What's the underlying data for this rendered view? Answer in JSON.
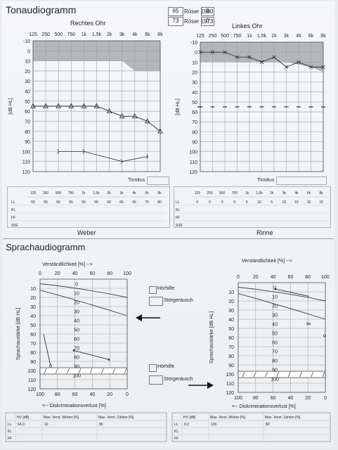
{
  "header": {
    "title": "Tonaudiogramm",
    "roeser1980_val": "65",
    "roeser1980_label": "Röser 1980",
    "roeser1980_box": "0",
    "roeser1973_val": "73",
    "roeser1973_label": "Röser 1973",
    "roeser1973_box": "0"
  },
  "tone": {
    "y_label": "[dB HL]",
    "y_ticks": [
      "-10",
      "0",
      "10",
      "20",
      "30",
      "40",
      "50",
      "60",
      "70",
      "80",
      "90",
      "100",
      "110",
      "120"
    ],
    "x_ticks": [
      "125",
      "250",
      "500",
      "750",
      "1k",
      "1,5k",
      "2k",
      "3k",
      "4k",
      "6k",
      "8k"
    ],
    "right": {
      "title": "Rechtes Ohr",
      "tinnitus": "Tinnitus",
      "air": [
        55,
        55,
        55,
        55,
        55,
        55,
        60,
        65,
        65,
        70,
        80
      ],
      "bone_points": [
        [
          2,
          100
        ],
        [
          4,
          100
        ],
        [
          7,
          110
        ],
        [
          9,
          105
        ]
      ]
    },
    "left": {
      "title": "Linkes Ohr",
      "tinnitus": "Tinnitus",
      "air": [
        0,
        0,
        0,
        5,
        5,
        10,
        5,
        15,
        10,
        15,
        15
      ]
    }
  },
  "ll_table": {
    "row_labels": [
      "LL",
      "KL",
      "FF",
      "SISI"
    ],
    "freqs": [
      "125",
      "250",
      "500",
      "750",
      "1k",
      "1,5k",
      "2k",
      "3k",
      "4k",
      "6k",
      "8k"
    ],
    "right_values": [
      "55",
      "55",
      "55",
      "55",
      "55",
      "55",
      "60",
      "65",
      "65",
      "70",
      "80"
    ],
    "left_values": [
      "0",
      "0",
      "0",
      "5",
      "5",
      "10",
      "5",
      "15",
      "10",
      "15",
      "15"
    ],
    "right_footer": "Weber",
    "left_footer": "Rinne"
  },
  "speech": {
    "title": "Sprachaudiogramm",
    "top_axis_label": "Verständlichkeit [%] -->",
    "bottom_axis_label": "<-- Diskriminationsverlust [%]",
    "y_label": "Sprachaustärke [dB HL]",
    "top_ticks": [
      "0",
      "20",
      "40",
      "60",
      "80",
      "100"
    ],
    "bottom_ticks": [
      "100",
      "80",
      "60",
      "40",
      "20",
      "0"
    ],
    "y_ticks": [
      "0",
      "10",
      "20",
      "30",
      "40",
      "50",
      "60",
      "70",
      "80",
      "90",
      "100",
      "110",
      "120"
    ],
    "inner_labels": [
      "0",
      "10",
      "20",
      "30",
      "40",
      "50",
      "60",
      "70",
      "80",
      "90",
      "100"
    ],
    "hoerhilfe": "Hörhilfe",
    "stoergeraeusch": "Störgeräusch"
  },
  "speech_table": {
    "headers": [
      "HV [dB]",
      "Max. Verst. Wörter [%]",
      "Max. Verst. Zahlen [%]"
    ],
    "row_labels": [
      "LL",
      "KL",
      "FF"
    ],
    "right_values": [
      "64,0",
      "10",
      "80"
    ],
    "left_values": [
      "0,2",
      "100",
      "80"
    ]
  }
}
